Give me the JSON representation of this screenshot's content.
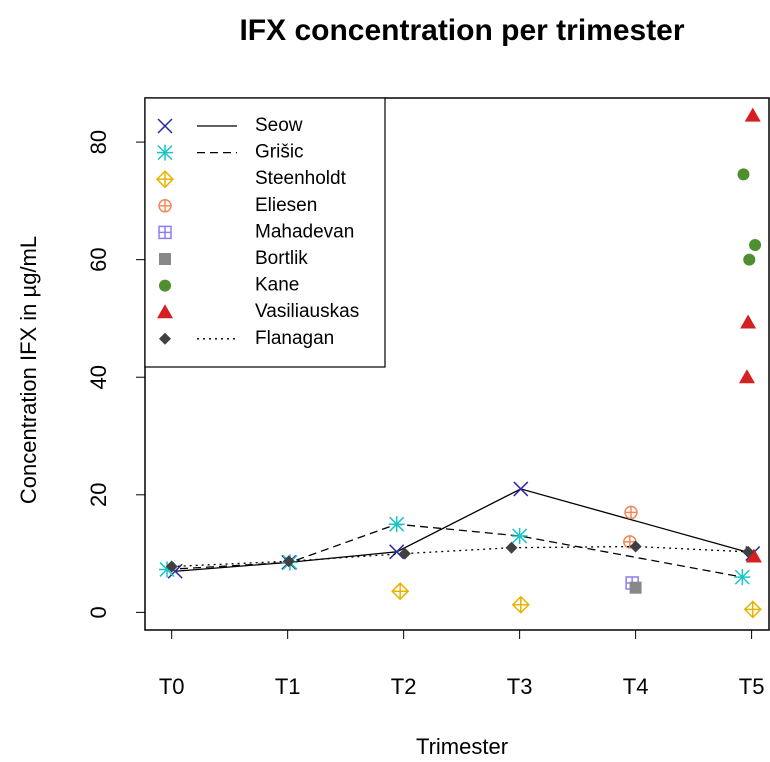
{
  "chart_data": {
    "type": "scatter",
    "title": "IFX concentration per trimester",
    "x_label": "Trimester",
    "y_label": "Concentration IFX in µg/mL",
    "xlim": [
      -0.23,
      5.15
    ],
    "ylim": [
      -3,
      87.5
    ],
    "xticks": [
      {
        "value": 0,
        "label": "T0"
      },
      {
        "value": 1,
        "label": "T1"
      },
      {
        "value": 2,
        "label": "T2"
      },
      {
        "value": 3,
        "label": "T3"
      },
      {
        "value": 4,
        "label": "T4"
      },
      {
        "value": 5,
        "label": "T5"
      }
    ],
    "yticks": [
      0,
      20,
      40,
      60,
      80
    ],
    "legend": "top-left",
    "series": [
      {
        "name": "Seow",
        "color": "#2b2ba8",
        "marker": "x",
        "line": "solid",
        "x": [
          0.03,
          1.01,
          1.94,
          3.01,
          5.01
        ],
        "values": [
          7,
          8.5,
          10.3,
          21,
          10
        ]
      },
      {
        "name": "Grišic",
        "color": "#19c4c4",
        "marker": "star",
        "line": "dashed",
        "x": [
          -0.04,
          1.02,
          1.94,
          3.0,
          4.92
        ],
        "values": [
          7.3,
          8.5,
          15,
          13,
          6
        ]
      },
      {
        "name": "Steenholdt",
        "color": "#e8b400",
        "marker": "diamond-plus",
        "line": null,
        "x": [
          1.97,
          3.01,
          5.01
        ],
        "values": [
          3.6,
          1.3,
          0.5
        ]
      },
      {
        "name": "Eliesen",
        "color": "#f08a5d",
        "marker": "circle-plus",
        "line": null,
        "x": [
          3.96,
          3.95
        ],
        "values": [
          17,
          12
        ]
      },
      {
        "name": "Mahadevan",
        "color": "#8f7ef0",
        "marker": "square-plus",
        "line": null,
        "x": [
          3.97
        ],
        "values": [
          5
        ]
      },
      {
        "name": "Bortlik",
        "color": "#888888",
        "marker": "square",
        "line": null,
        "x": [
          4.0
        ],
        "values": [
          4.2
        ]
      },
      {
        "name": "Kane",
        "color": "#4f8f2f",
        "marker": "circle",
        "line": null,
        "x": [
          4.93,
          5.03,
          4.98
        ],
        "values": [
          74.5,
          62.5,
          60
        ]
      },
      {
        "name": "Vasiliauskas",
        "color": "#d42020",
        "marker": "triangle",
        "line": null,
        "x": [
          5.01,
          4.97,
          4.96,
          5.02
        ],
        "values": [
          84.5,
          49.3,
          40,
          9.5
        ]
      },
      {
        "name": "Flanagan",
        "color": "#404040",
        "marker": "diamond",
        "line": "dotted",
        "x": [
          0.0,
          1.01,
          2.01,
          2.93,
          4.0,
          4.97
        ],
        "values": [
          7.8,
          8.7,
          10,
          11,
          11.2,
          10.3
        ]
      }
    ]
  }
}
